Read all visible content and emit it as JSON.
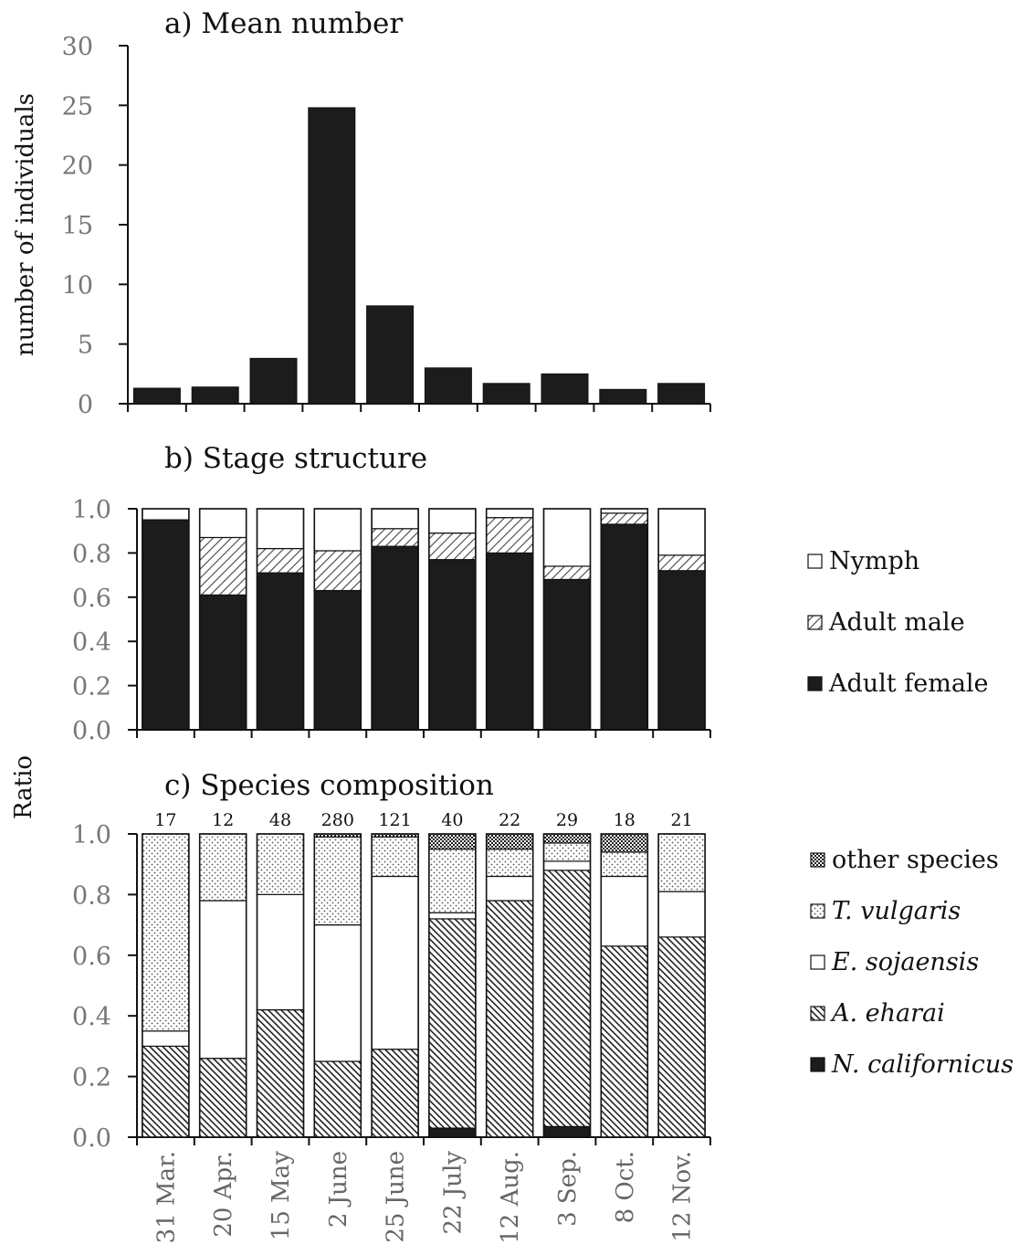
{
  "colors": {
    "dark": "#1c1c1c",
    "white": "#ffffff",
    "axis": "#111111",
    "tick_text": "#777777"
  },
  "axis_titles": {
    "panel_a_y": "number of individuals",
    "panels_bc_y": "Ratio"
  },
  "chart_data": [
    {
      "type": "bar",
      "title": "a) Mean number",
      "ylabel": "number of individuals",
      "categories": [
        "31 Mar.",
        "20 Apr.",
        "15 May",
        "2 June",
        "25 June",
        "22 July",
        "12 Aug.",
        "3 Sep.",
        "8 Oct.",
        "12 Nov."
      ],
      "values": [
        1.3,
        1.4,
        3.8,
        24.8,
        8.2,
        3.0,
        1.7,
        2.5,
        1.2,
        1.7
      ],
      "ylim": [
        0,
        30
      ],
      "yticks": [
        "0",
        "5",
        "10",
        "15",
        "20",
        "25",
        "30"
      ],
      "grid": false
    },
    {
      "type": "bar",
      "stacked": true,
      "title": "b) Stage structure",
      "categories": [
        "31 Mar.",
        "20 Apr.",
        "15 May",
        "2 June",
        "25 June",
        "22 July",
        "12 Aug.",
        "3 Sep.",
        "8 Oct.",
        "12 Nov."
      ],
      "ylim": [
        0,
        1
      ],
      "yticks": [
        "0.0",
        "0.2",
        "0.4",
        "0.6",
        "0.8",
        "1.0"
      ],
      "legend_position": "right",
      "series": [
        {
          "name": "Adult female",
          "pattern": "solid",
          "values": [
            0.95,
            0.61,
            0.71,
            0.63,
            0.83,
            0.77,
            0.8,
            0.68,
            0.93,
            0.72
          ]
        },
        {
          "name": "Adult male",
          "pattern": "hatch",
          "values": [
            0.0,
            0.26,
            0.11,
            0.18,
            0.08,
            0.12,
            0.16,
            0.06,
            0.05,
            0.07
          ]
        },
        {
          "name": "Nymph",
          "pattern": "white",
          "values": [
            0.05,
            0.13,
            0.18,
            0.19,
            0.09,
            0.11,
            0.04,
            0.26,
            0.02,
            0.21
          ]
        }
      ]
    },
    {
      "type": "bar",
      "stacked": true,
      "title": "c) Species composition",
      "categories": [
        "31 Mar.",
        "20 Apr.",
        "15 May",
        "2 June",
        "25 June",
        "22 July",
        "12 Aug.",
        "3 Sep.",
        "8 Oct.",
        "12 Nov."
      ],
      "counts": [
        "17",
        "12",
        "48",
        "280",
        "121",
        "40",
        "22",
        "29",
        "18",
        "21"
      ],
      "ylim": [
        0,
        1
      ],
      "yticks": [
        "0.0",
        "0.2",
        "0.4",
        "0.6",
        "0.8",
        "1.0"
      ],
      "legend_position": "right",
      "series": [
        {
          "name": "N. californicus",
          "pattern": "solid",
          "values": [
            0.0,
            0.0,
            0.0,
            0.0,
            0.0,
            0.03,
            0.0,
            0.035,
            0.0,
            0.0
          ]
        },
        {
          "name": "A. eharai",
          "pattern": "dense-hatch",
          "values": [
            0.3,
            0.26,
            0.42,
            0.25,
            0.29,
            0.69,
            0.78,
            0.845,
            0.63,
            0.66
          ]
        },
        {
          "name": "E. sojaensis",
          "pattern": "white",
          "values": [
            0.05,
            0.52,
            0.38,
            0.45,
            0.57,
            0.02,
            0.08,
            0.03,
            0.23,
            0.15
          ]
        },
        {
          "name": "T. vulgaris",
          "pattern": "dots",
          "values": [
            0.65,
            0.22,
            0.2,
            0.29,
            0.13,
            0.21,
            0.09,
            0.06,
            0.08,
            0.19
          ]
        },
        {
          "name": "other species",
          "pattern": "check",
          "values": [
            0.0,
            0.0,
            0.0,
            0.01,
            0.01,
            0.05,
            0.05,
            0.03,
            0.06,
            0.0
          ]
        }
      ]
    }
  ]
}
